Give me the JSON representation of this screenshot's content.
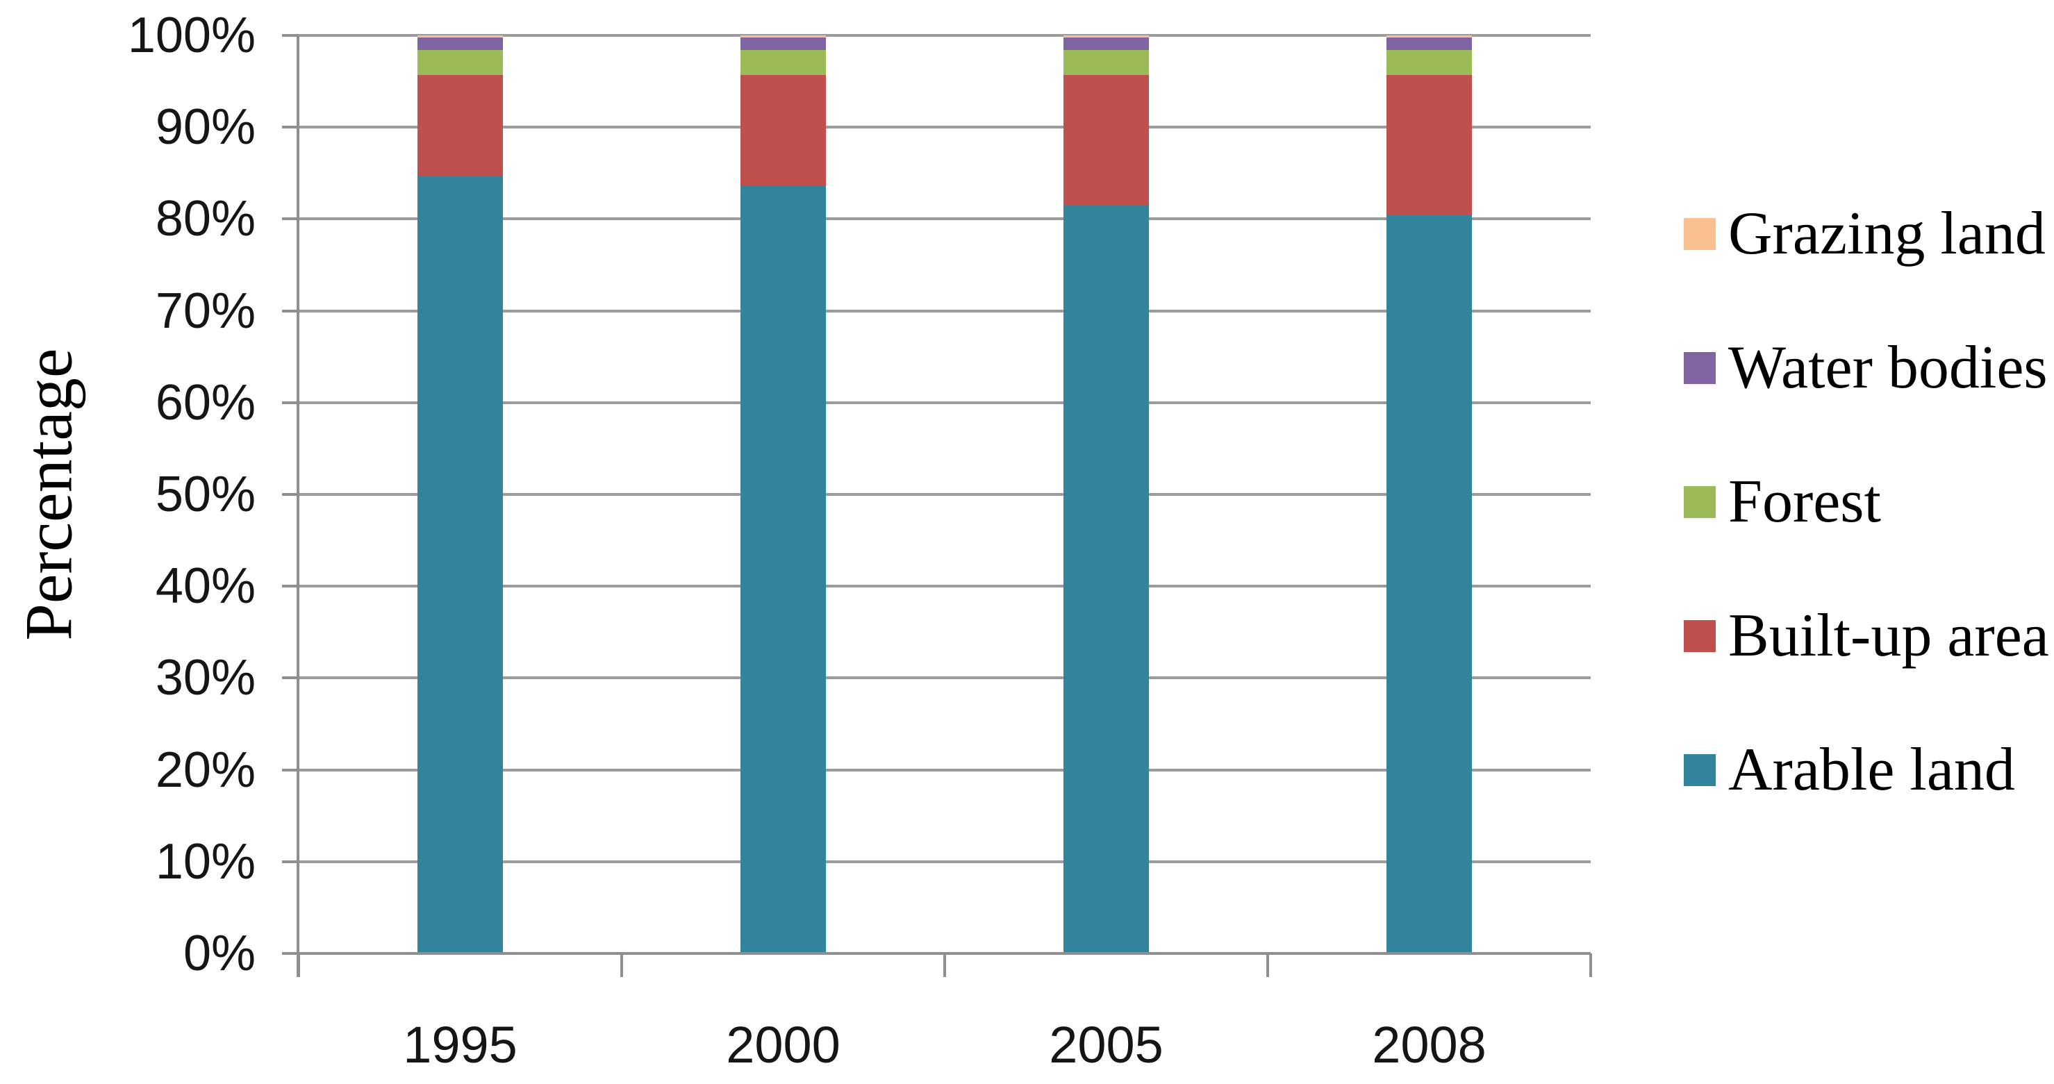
{
  "chart_data": {
    "type": "bar",
    "variant": "stacked-percent",
    "title": "",
    "xlabel": "",
    "ylabel": "Percentage",
    "categories": [
      "1995",
      "2000",
      "2005",
      "2008"
    ],
    "series": [
      {
        "name": "Arable land",
        "color": "#31849B",
        "values": [
          84.7,
          83.7,
          81.5,
          80.4
        ]
      },
      {
        "name": "Built-up area",
        "color": "#C0504D",
        "values": [
          11.0,
          12.0,
          14.2,
          15.3
        ]
      },
      {
        "name": "Forest",
        "color": "#9BBB59",
        "values": [
          2.7,
          2.7,
          2.7,
          2.7
        ]
      },
      {
        "name": "Water bodies",
        "color": "#8064A2",
        "values": [
          1.4,
          1.4,
          1.4,
          1.4
        ]
      },
      {
        "name": "Grazing land",
        "color": "#FAC090",
        "values": [
          0.2,
          0.2,
          0.2,
          0.2
        ]
      }
    ],
    "legend_order": [
      "Grazing land",
      "Water bodies",
      "Forest",
      "Built-up area",
      "Arable land"
    ],
    "legend_position": "right",
    "ylim": [
      0,
      100
    ],
    "ytick_step": 10,
    "y_tick_labels": [
      "0%",
      "10%",
      "20%",
      "30%",
      "40%",
      "50%",
      "60%",
      "70%",
      "80%",
      "90%",
      "100%"
    ],
    "grid": true,
    "colors": {
      "gridline": "#9B9B9B",
      "axis": "#8F8F8F",
      "tick_text": "#151515",
      "label_text": "#000000",
      "background": "#FFFFFF"
    }
  }
}
